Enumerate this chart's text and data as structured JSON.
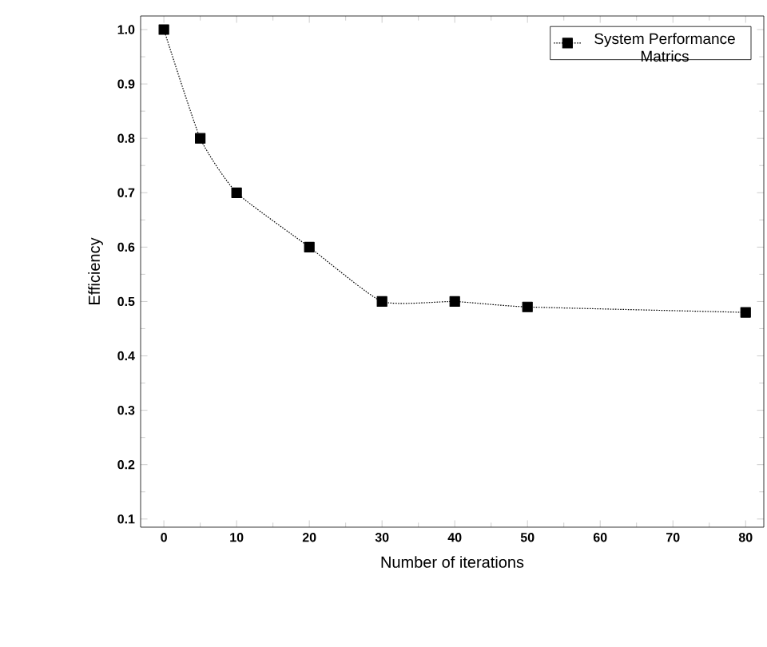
{
  "chart_data": {
    "type": "line",
    "xlabel": "Number of iterations",
    "ylabel": "Efficiency",
    "x": [
      0,
      5,
      10,
      20,
      30,
      40,
      50,
      80
    ],
    "series": [
      {
        "name": "System Performance Matrics",
        "color": "#000000",
        "values": [
          1.0,
          0.8,
          0.7,
          0.6,
          0.5,
          0.5,
          0.49,
          0.48
        ]
      }
    ],
    "xlim": [
      -3.2,
      82.5
    ],
    "xticks": [
      0,
      10,
      20,
      30,
      40,
      50,
      60,
      70,
      80
    ],
    "ylim": [
      0.085,
      1.025
    ],
    "yticks": [
      {
        "value": 0.1,
        "label": "0.1"
      },
      {
        "value": 0.2,
        "label": "0.2"
      },
      {
        "value": 0.3,
        "label": "0.3"
      },
      {
        "value": 0.4,
        "label": "0.4"
      },
      {
        "value": 0.5,
        "label": "0.5"
      },
      {
        "value": 0.6,
        "label": "0.6"
      },
      {
        "value": 0.7,
        "label": "0.7"
      },
      {
        "value": 0.8,
        "label": "0.8"
      },
      {
        "value": 0.9,
        "label": "0.9"
      },
      {
        "value": 1.0,
        "label": "1.0"
      }
    ],
    "marker": "square",
    "line_style": "dotted",
    "legend": "top right",
    "grid": false
  }
}
